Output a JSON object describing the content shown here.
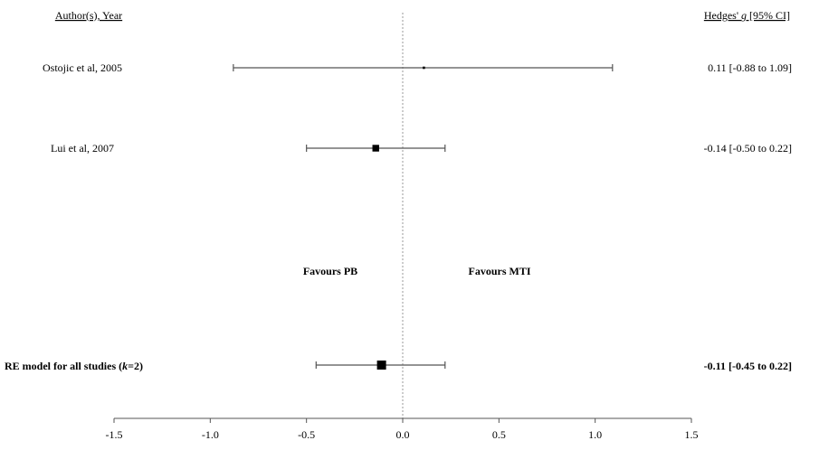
{
  "chart_data": {
    "type": "forest",
    "header_left": "Author(s), Year",
    "header_right_prefix": "Hedges' ",
    "header_right_italic": "g",
    "header_right_suffix": " [95% CI]",
    "studies": [
      {
        "label": "Ostojic et al, 2005",
        "estimate": 0.11,
        "lower": -0.88,
        "upper": 1.09,
        "ci_text": "0.11 [-0.88 to 1.09]",
        "weight": 0.1
      },
      {
        "label": "Lui et al, 2007",
        "estimate": -0.14,
        "lower": -0.5,
        "upper": 0.22,
        "ci_text": "-0.14 [-0.50 to 0.22]",
        "weight": 0.9
      }
    ],
    "summary": {
      "label_prefix": "RE model for all studies (",
      "label_italic": "k",
      "label_suffix": "=2)",
      "estimate": -0.11,
      "lower": -0.45,
      "upper": 0.22,
      "ci_text": "-0.11 [-0.45 to 0.22]"
    },
    "favours_left": "Favours PB",
    "favours_right": "Favours MTI",
    "x_ticks": [
      -1.5,
      -1.0,
      -0.5,
      0.0,
      0.5,
      1.0,
      1.5
    ],
    "x_tick_labels": [
      "-1.5",
      "-1.0",
      "-0.5",
      "0.0",
      "0.5",
      "1.0",
      "1.5"
    ],
    "xlim": [
      -1.5,
      1.5
    ],
    "reference_line": 0
  }
}
